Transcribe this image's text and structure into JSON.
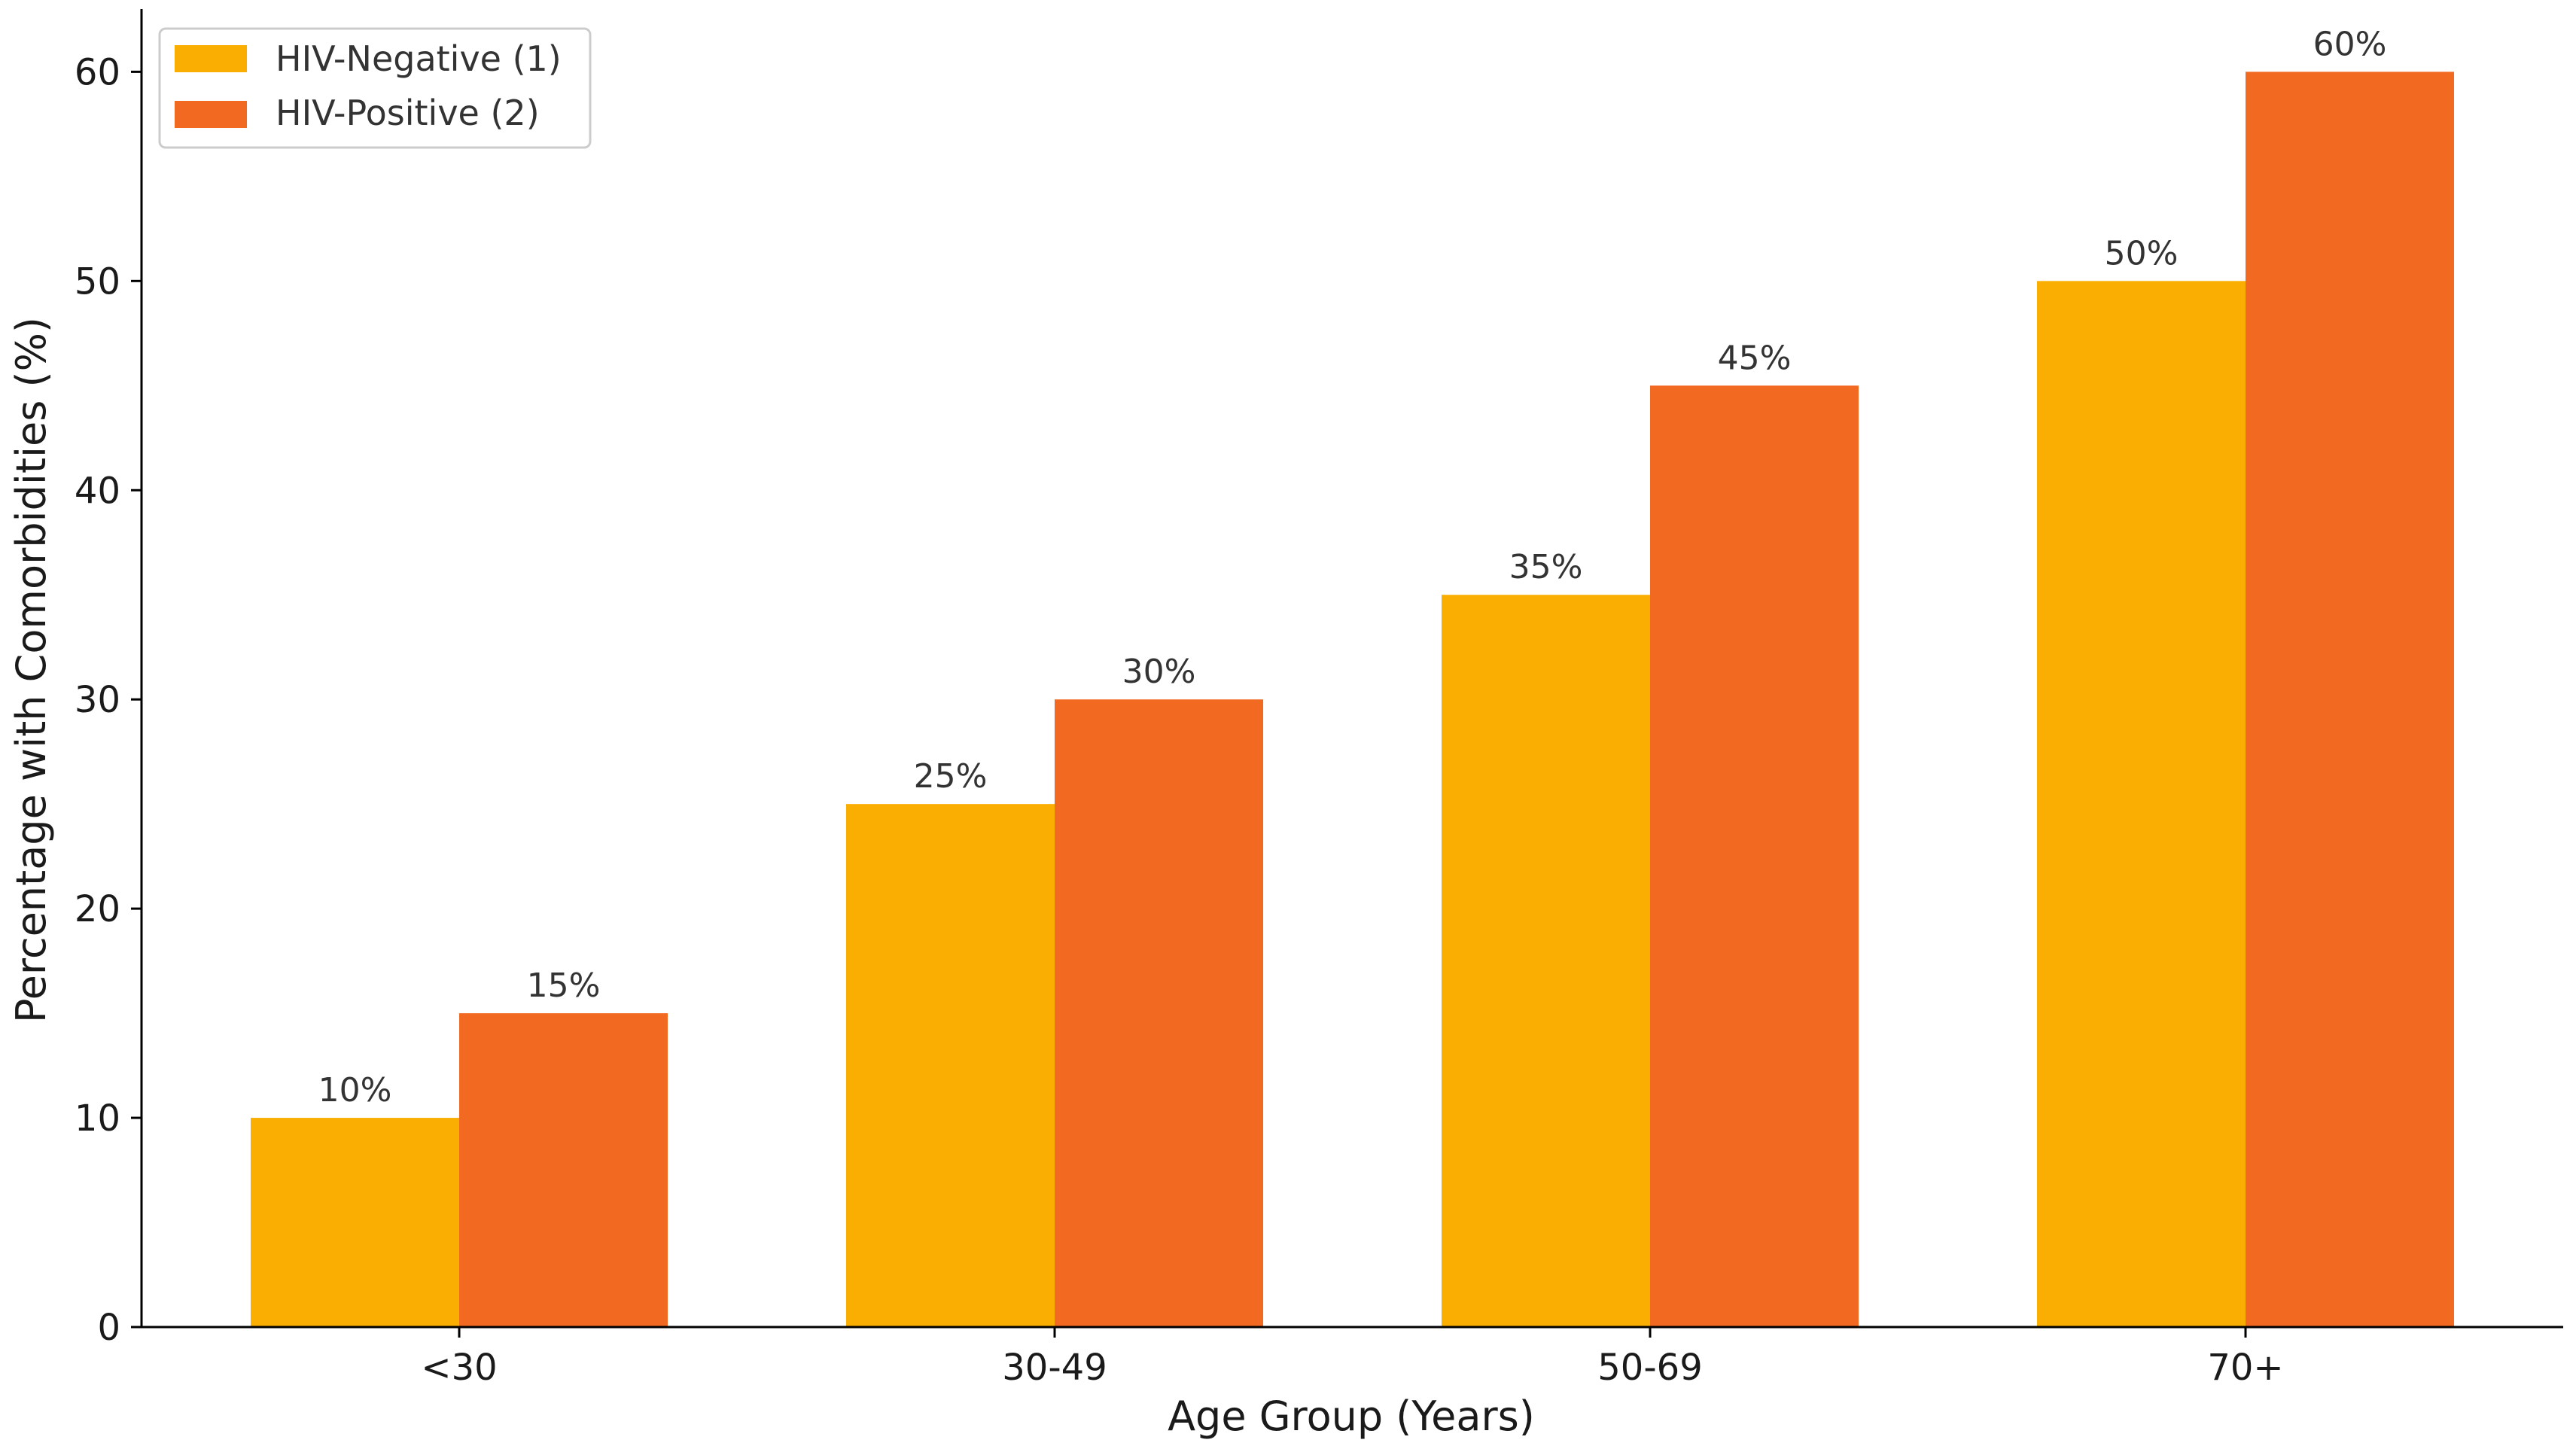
{
  "chart_data": {
    "type": "bar",
    "title": "",
    "xlabel": "Age Group (Years)",
    "ylabel": "Percentage with Comorbidities (%)",
    "categories": [
      "<30",
      "30-49",
      "50-69",
      "70+"
    ],
    "series": [
      {
        "name": "HIV-Negative (1)",
        "color": "#FBAE02",
        "values": [
          10,
          25,
          35,
          50
        ],
        "labels": [
          "10%",
          "25%",
          "35%",
          "50%"
        ]
      },
      {
        "name": "HIV-Positive (2)",
        "color": "#F26922",
        "values": [
          15,
          30,
          45,
          60
        ],
        "labels": [
          "15%",
          "30%",
          "45%",
          "60%"
        ]
      }
    ],
    "ylim": [
      0,
      63
    ],
    "yticks": [
      0,
      10,
      20,
      30,
      40,
      50,
      60
    ],
    "grid": false,
    "legend_position": "top-left"
  }
}
